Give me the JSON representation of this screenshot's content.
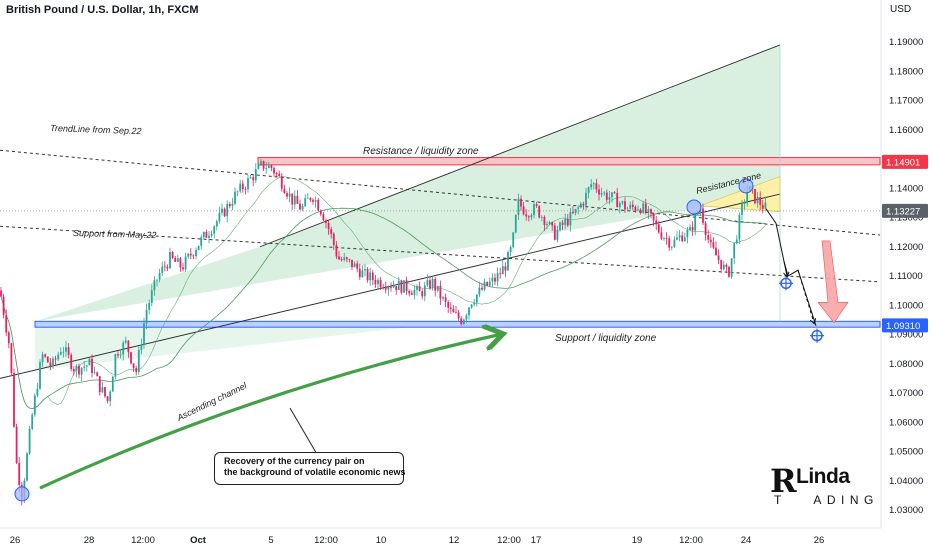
{
  "header": {
    "title": "British Pound / U.S. Dollar, 1h, FXCM",
    "currency": "USD"
  },
  "chart_data": {
    "type": "candlestick",
    "title": "British Pound / U.S. Dollar, 1h, FXCM",
    "ylabel": "USD",
    "ylim": [
      1.025,
      1.198
    ],
    "y_ticks": [
      1.03,
      1.04,
      1.05,
      1.06,
      1.07,
      1.08,
      1.09,
      1.1,
      1.11,
      1.12,
      1.13,
      1.14,
      1.15,
      1.16,
      1.17,
      1.18,
      1.19
    ],
    "x_ticks": [
      "26",
      "28",
      "12:00",
      "Oct",
      "5",
      "12:00",
      "10",
      "12",
      "12:00",
      "17",
      "19",
      "12:00",
      "24",
      "26"
    ],
    "price_path": [
      [
        0,
        1.105
      ],
      [
        10,
        1.085
      ],
      [
        16,
        1.047
      ],
      [
        22,
        1.035
      ],
      [
        32,
        1.062
      ],
      [
        42,
        1.083
      ],
      [
        52,
        1.079
      ],
      [
        62,
        1.086
      ],
      [
        75,
        1.078
      ],
      [
        90,
        1.08
      ],
      [
        100,
        1.072
      ],
      [
        108,
        1.067
      ],
      [
        116,
        1.084
      ],
      [
        126,
        1.087
      ],
      [
        136,
        1.077
      ],
      [
        146,
        1.098
      ],
      [
        158,
        1.11
      ],
      [
        170,
        1.116
      ],
      [
        182,
        1.113
      ],
      [
        196,
        1.12
      ],
      [
        208,
        1.125
      ],
      [
        222,
        1.131
      ],
      [
        236,
        1.138
      ],
      [
        250,
        1.143
      ],
      [
        262,
        1.148
      ],
      [
        272,
        1.147
      ],
      [
        282,
        1.142
      ],
      [
        292,
        1.136
      ],
      [
        302,
        1.133
      ],
      [
        312,
        1.138
      ],
      [
        322,
        1.132
      ],
      [
        330,
        1.125
      ],
      [
        338,
        1.116
      ],
      [
        352,
        1.114
      ],
      [
        366,
        1.11
      ],
      [
        380,
        1.108
      ],
      [
        394,
        1.107
      ],
      [
        408,
        1.106
      ],
      [
        420,
        1.104
      ],
      [
        432,
        1.108
      ],
      [
        444,
        1.101
      ],
      [
        452,
        1.097
      ],
      [
        462,
        1.095
      ],
      [
        472,
        1.102
      ],
      [
        484,
        1.106
      ],
      [
        496,
        1.109
      ],
      [
        506,
        1.114
      ],
      [
        512,
        1.12
      ],
      [
        518,
        1.135
      ],
      [
        526,
        1.132
      ],
      [
        536,
        1.133
      ],
      [
        546,
        1.129
      ],
      [
        554,
        1.124
      ],
      [
        564,
        1.128
      ],
      [
        574,
        1.131
      ],
      [
        584,
        1.136
      ],
      [
        592,
        1.142
      ],
      [
        604,
        1.138
      ],
      [
        616,
        1.136
      ],
      [
        628,
        1.133
      ],
      [
        640,
        1.134
      ],
      [
        650,
        1.13
      ],
      [
        660,
        1.125
      ],
      [
        672,
        1.121
      ],
      [
        682,
        1.124
      ],
      [
        690,
        1.125
      ],
      [
        700,
        1.134
      ],
      [
        710,
        1.12
      ],
      [
        720,
        1.115
      ],
      [
        728,
        1.11
      ],
      [
        734,
        1.12
      ],
      [
        742,
        1.133
      ],
      [
        748,
        1.14
      ],
      [
        754,
        1.137
      ],
      [
        760,
        1.135
      ],
      [
        766,
        1.133
      ]
    ],
    "projection_path": [
      [
        766,
        1.133
      ],
      [
        776,
        1.128
      ],
      [
        784,
        1.115
      ],
      [
        788,
        1.11
      ],
      [
        798,
        1.112
      ],
      [
        816,
        1.093
      ]
    ],
    "lines": {
      "trendline_sep22": [
        [
          0,
          1.153
        ],
        [
          880,
          1.124
        ]
      ],
      "support_may22": [
        [
          0,
          1.127
        ],
        [
          880,
          1.108
        ]
      ],
      "channel_upper": [
        [
          260,
          1.12
        ],
        [
          780,
          1.189
        ]
      ],
      "channel_lower": [
        [
          0,
          1.075
        ],
        [
          780,
          1.138
        ]
      ]
    },
    "zones": {
      "resistance": [
        1.148,
        1.1505
      ],
      "support": [
        1.0925,
        1.0945
      ]
    },
    "price_labels": [
      {
        "value": 1.14901,
        "label": "1.14901",
        "color": "#f23645"
      },
      {
        "value": 1.13227,
        "label": "1.13227",
        "color": "#5d606b"
      },
      {
        "value": 1.0931,
        "label": "1.09310",
        "color": "#2962ff"
      }
    ],
    "annotations": [
      "TrendLine from Sep.22",
      "Resistance / liquidity zone",
      "Support from May.22",
      "Resistance zone",
      "Support / liquidity zone",
      "Ascending channel"
    ],
    "note": [
      "Recovery of the currency pair on",
      "the background of volatile economic news"
    ],
    "colors": {
      "up": "#26a69a",
      "down": "#e91e63",
      "resistance": "#f23645",
      "support": "#2962ff",
      "channel_fill": "#b9e4c9",
      "arrow_green": "#43a047",
      "arrow_red": "#ef5350"
    }
  },
  "logo": {
    "initial": "R",
    "name": "Linda",
    "sub_left": "T",
    "sub_right": "ADING"
  }
}
